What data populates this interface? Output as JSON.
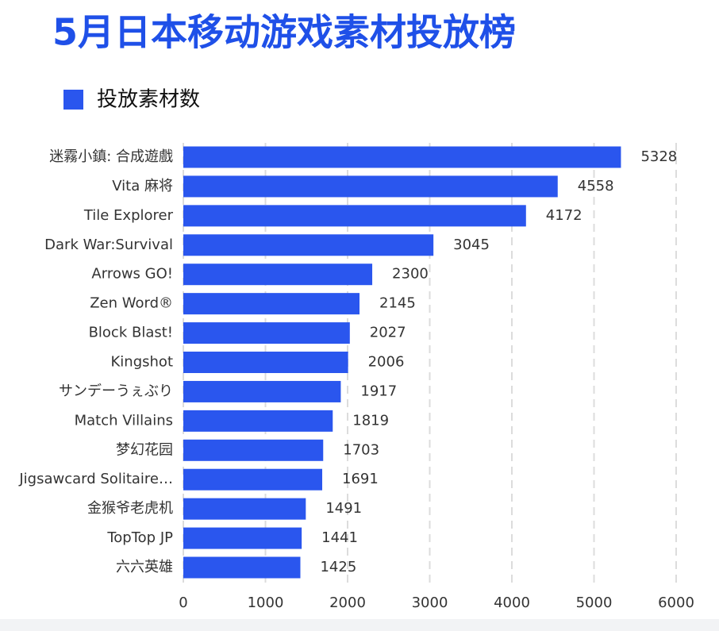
{
  "chart_data": {
    "type": "bar",
    "orientation": "horizontal",
    "title": "5月日本移动游戏素材投放榜",
    "categories": [
      "迷霧小鎮: 合成遊戲",
      "Vita 麻将",
      "Tile Explorer",
      "Dark War:Survival",
      "Arrows GO!",
      "Zen Word®",
      "Block Blast!",
      "Kingshot",
      "サンデーうぇぶり",
      "Match Villains",
      "梦幻花园",
      "Jigsawcard Solitaire…",
      "金猴爷老虎机",
      "TopTop JP",
      "六六英雄"
    ],
    "series": [
      {
        "name": "投放素材数",
        "color": "#2a56ee",
        "values": [
          5328,
          4558,
          4172,
          3045,
          2300,
          2145,
          2027,
          2006,
          1917,
          1819,
          1703,
          1691,
          1491,
          1441,
          1425
        ]
      }
    ],
    "xlim": [
      0,
      6000
    ],
    "xticks": [
      0,
      1000,
      2000,
      3000,
      4000,
      5000,
      6000
    ],
    "grid": true
  }
}
